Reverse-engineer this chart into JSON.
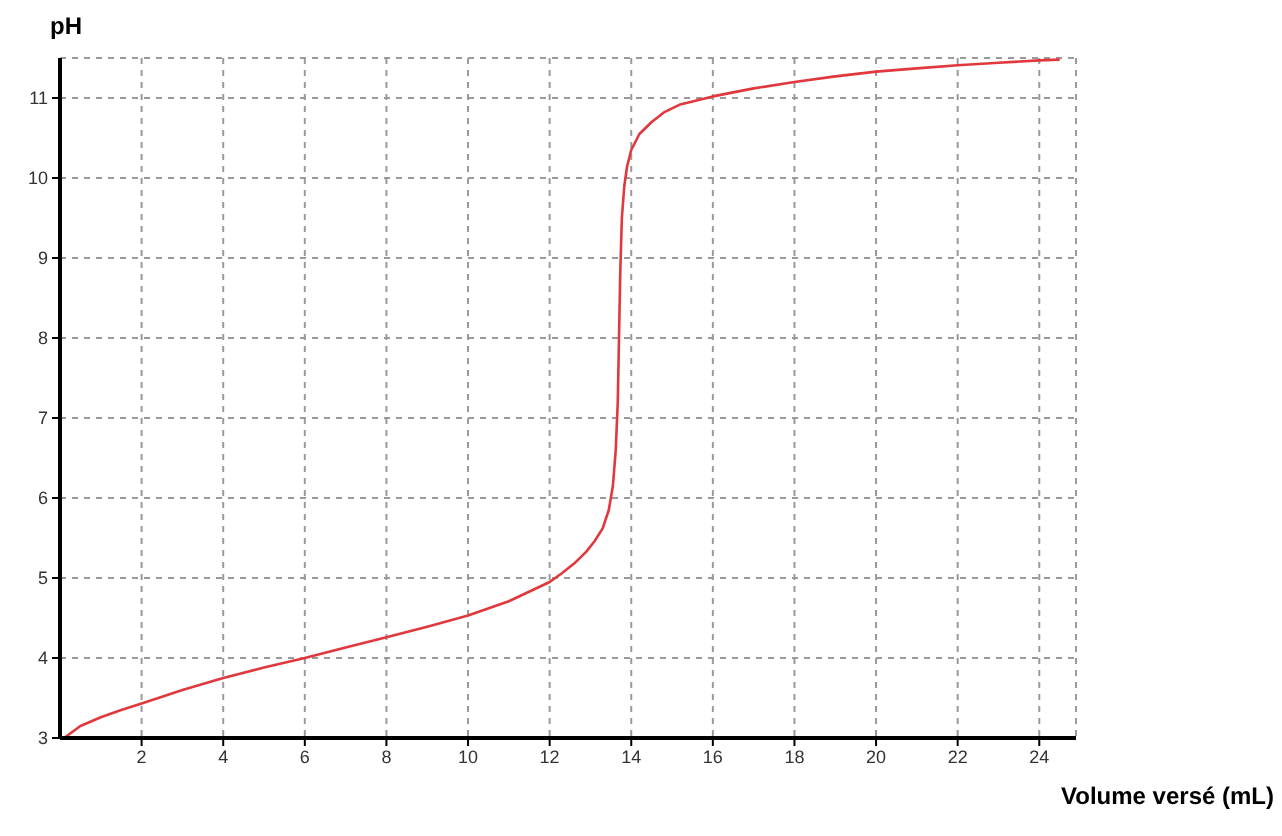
{
  "chart_data": {
    "type": "line",
    "xlabel": "Volume versé (mL)",
    "ylabel": "pH",
    "x": [
      0.1,
      0.5,
      1,
      1.5,
      2,
      3,
      4,
      5,
      6,
      7,
      8,
      9,
      10,
      11,
      12,
      12.3,
      12.6,
      12.9,
      13.1,
      13.3,
      13.45,
      13.55,
      13.62,
      13.67,
      13.7,
      13.73,
      13.77,
      13.83,
      13.9,
      14.0,
      14.2,
      14.5,
      14.8,
      15.2,
      16,
      17,
      18,
      19,
      20,
      21,
      22,
      23,
      24,
      24.5
    ],
    "series": [
      {
        "color": "#e0383c",
        "values": [
          3.0,
          3.15,
          3.26,
          3.35,
          3.43,
          3.6,
          3.75,
          3.88,
          4.0,
          4.13,
          4.26,
          4.39,
          4.53,
          4.71,
          4.95,
          5.06,
          5.18,
          5.33,
          5.46,
          5.62,
          5.85,
          6.15,
          6.6,
          7.2,
          8.0,
          8.8,
          9.5,
          9.9,
          10.15,
          10.35,
          10.55,
          10.7,
          10.82,
          10.92,
          11.02,
          11.12,
          11.2,
          11.27,
          11.33,
          11.37,
          11.41,
          11.44,
          11.47,
          11.48
        ]
      }
    ],
    "xlim": [
      0,
      24.9
    ],
    "xticks": [
      2,
      4,
      6,
      8,
      10,
      12,
      14,
      16,
      18,
      20,
      22,
      24
    ],
    "ylim": [
      3,
      11.5
    ],
    "yticks": [
      3,
      4,
      5,
      6,
      7,
      8,
      9,
      10,
      11
    ],
    "grid": true,
    "marker": "none",
    "line_style": "solid"
  }
}
